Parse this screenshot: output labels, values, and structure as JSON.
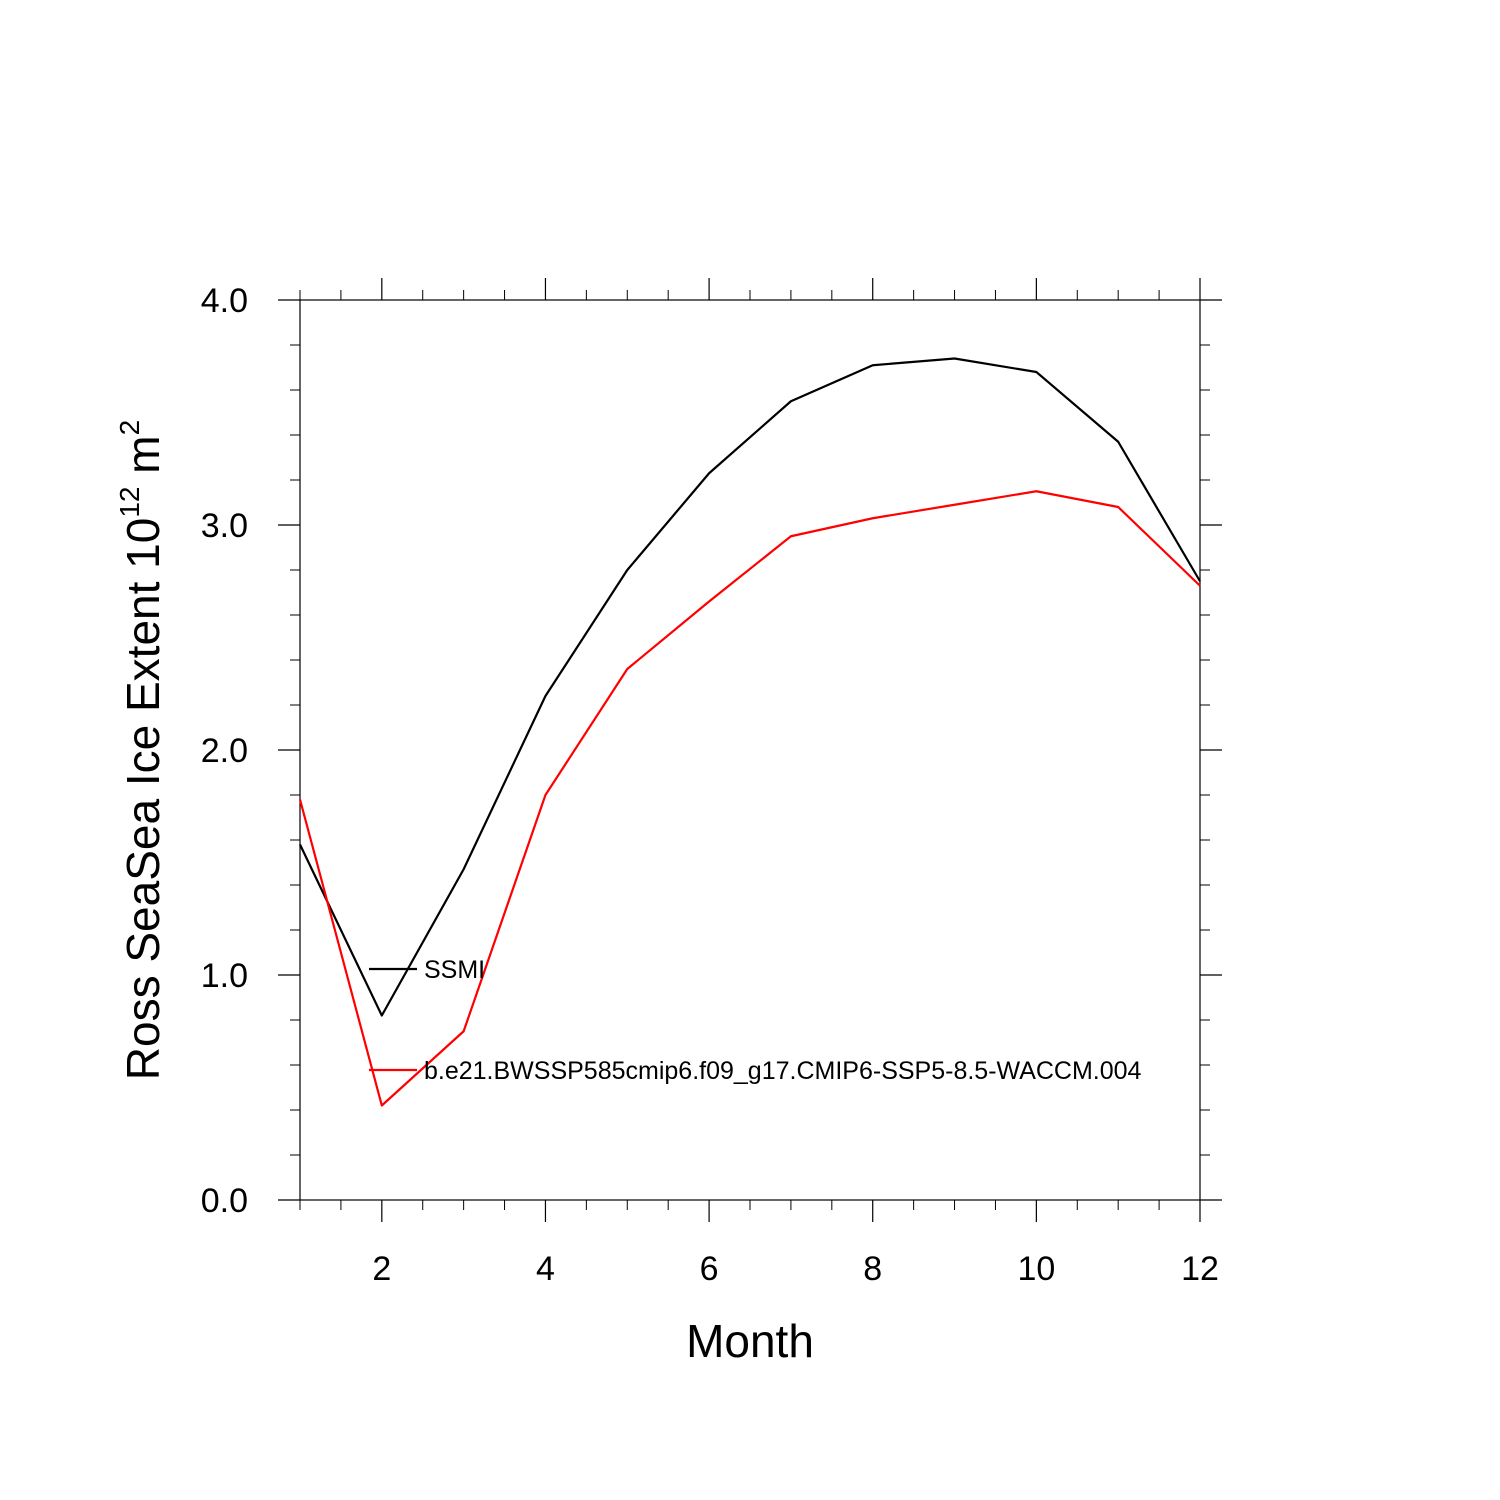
{
  "chart_data": {
    "type": "line",
    "xlabel": "Month",
    "ylabel": {
      "text": "Ross SeaSea Ice Extent 10",
      "superscript": "12",
      "unit": " m",
      "unit_superscript": "2"
    },
    "xlim": [
      1,
      12
    ],
    "ylim": [
      0.0,
      4.0
    ],
    "x_ticks": [
      2,
      4,
      6,
      8,
      10,
      12
    ],
    "y_ticks": [
      "0.0",
      "1.0",
      "2.0",
      "3.0",
      "4.0"
    ],
    "x": [
      1,
      2,
      3,
      4,
      5,
      6,
      7,
      8,
      9,
      10,
      11,
      12
    ],
    "series": [
      {
        "name": "SSMI",
        "color": "#000000",
        "values": [
          1.58,
          0.82,
          1.47,
          2.24,
          2.8,
          3.23,
          3.55,
          3.71,
          3.74,
          3.68,
          3.37,
          2.75
        ]
      },
      {
        "name": "b.e21.BWSSP585cmip6.f09_g17.CMIP6-SSP5-8.5-WACCM.004",
        "color": "#ff0000",
        "values": [
          1.78,
          0.42,
          0.75,
          1.8,
          2.36,
          2.66,
          2.95,
          3.03,
          3.09,
          3.15,
          3.08,
          2.73
        ]
      }
    ],
    "grid": false,
    "legend_position": "inside-lower-left"
  }
}
